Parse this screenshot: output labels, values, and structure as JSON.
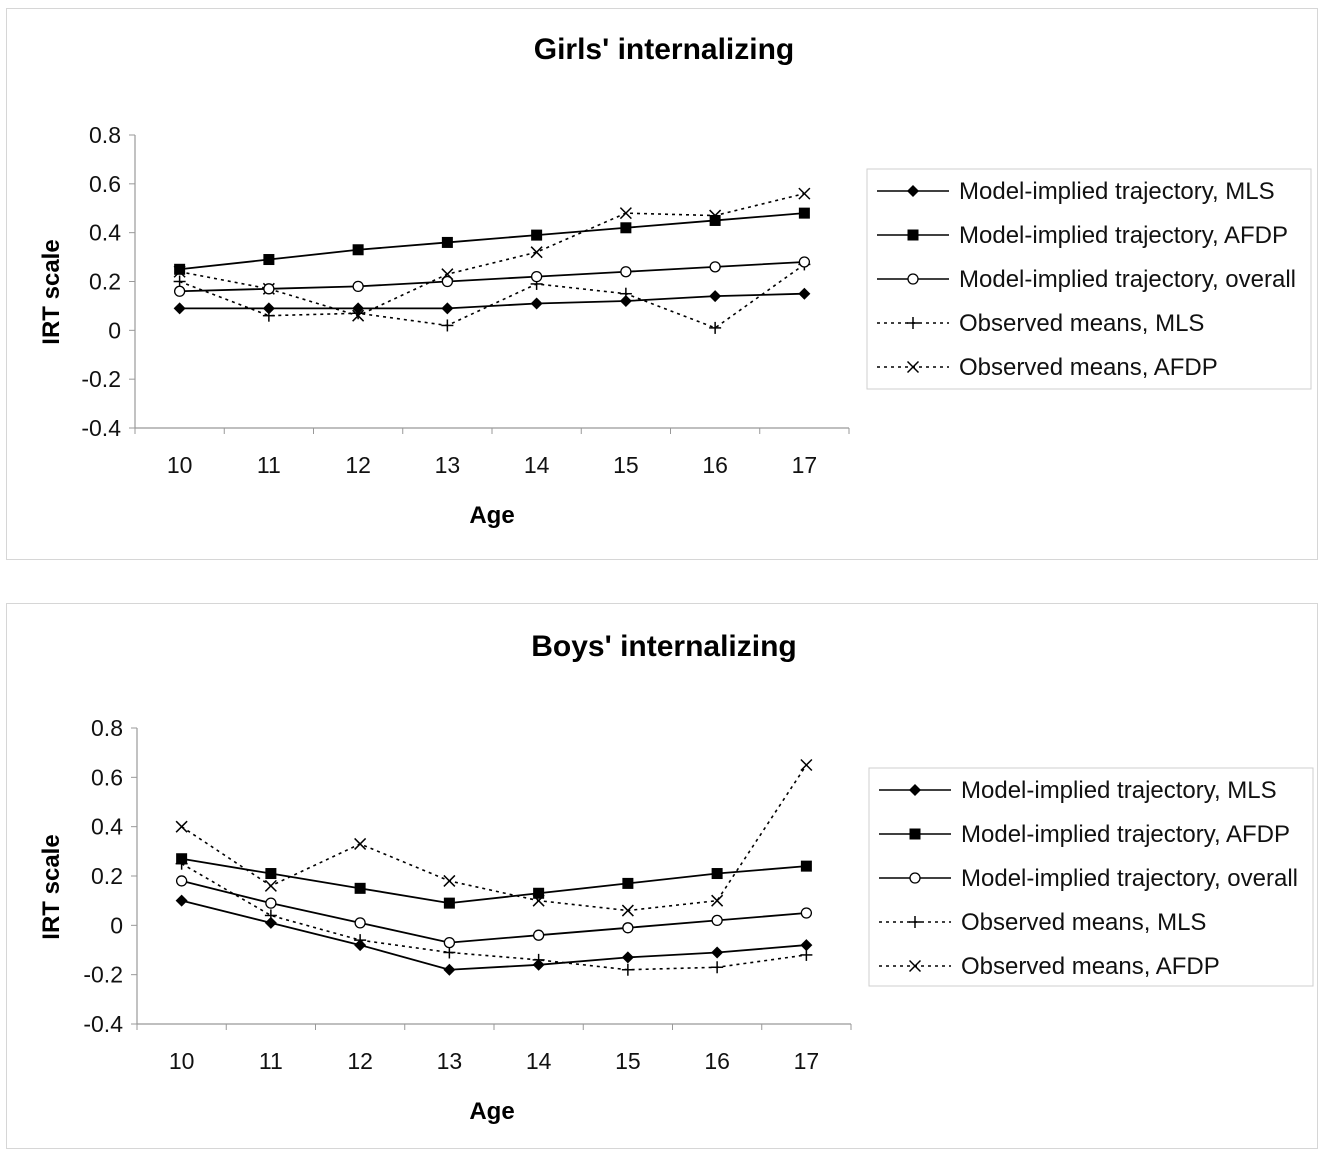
{
  "chart_data": [
    {
      "type": "line",
      "title": "Girls' internalizing",
      "xlabel": "Age",
      "ylabel": "IRT scale",
      "x": [
        10,
        11,
        12,
        13,
        14,
        15,
        16,
        17
      ],
      "ylim": [
        -0.4,
        0.8
      ],
      "yticks": [
        "0.8",
        "0.6",
        "0.4",
        "0.2",
        "0",
        "-0.2",
        "-0.4"
      ],
      "legend_position": "right",
      "grid": false,
      "series": [
        {
          "name": "Model-implied trajectory, MLS",
          "marker": "diamond",
          "style": "solid",
          "values": [
            0.09,
            0.09,
            0.09,
            0.09,
            0.11,
            0.12,
            0.14,
            0.15
          ]
        },
        {
          "name": "Model-implied trajectory, AFDP",
          "marker": "square",
          "style": "solid",
          "values": [
            0.25,
            0.29,
            0.33,
            0.36,
            0.39,
            0.42,
            0.45,
            0.48
          ]
        },
        {
          "name": "Model-implied trajectory, overall",
          "marker": "circle",
          "style": "solid",
          "values": [
            0.16,
            0.17,
            0.18,
            0.2,
            0.22,
            0.24,
            0.26,
            0.28
          ]
        },
        {
          "name": "Observed means, MLS",
          "marker": "plus",
          "style": "dotted",
          "values": [
            0.2,
            0.06,
            0.07,
            0.02,
            0.19,
            0.15,
            0.01,
            0.27
          ]
        },
        {
          "name": "Observed means, AFDP",
          "marker": "x",
          "style": "dotted",
          "values": [
            0.24,
            0.17,
            0.06,
            0.23,
            0.32,
            0.48,
            0.47,
            0.56
          ]
        }
      ]
    },
    {
      "type": "line",
      "title": "Boys' internalizing",
      "xlabel": "Age",
      "ylabel": "IRT scale",
      "x": [
        10,
        11,
        12,
        13,
        14,
        15,
        16,
        17
      ],
      "ylim": [
        -0.4,
        0.8
      ],
      "yticks": [
        "0.8",
        "0.6",
        "0.4",
        "0.2",
        "0",
        "-0.2",
        "-0.4"
      ],
      "legend_position": "right",
      "grid": false,
      "series": [
        {
          "name": "Model-implied trajectory, MLS",
          "marker": "diamond",
          "style": "solid",
          "values": [
            0.1,
            0.01,
            -0.08,
            -0.18,
            -0.16,
            -0.13,
            -0.11,
            -0.08
          ]
        },
        {
          "name": "Model-implied trajectory, AFDP",
          "marker": "square",
          "style": "solid",
          "values": [
            0.27,
            0.21,
            0.15,
            0.09,
            0.13,
            0.17,
            0.21,
            0.24
          ]
        },
        {
          "name": "Model-implied trajectory, overall",
          "marker": "circle",
          "style": "solid",
          "values": [
            0.18,
            0.09,
            0.01,
            -0.07,
            -0.04,
            -0.01,
            0.02,
            0.05
          ]
        },
        {
          "name": "Observed means, MLS",
          "marker": "plus",
          "style": "dotted",
          "values": [
            0.25,
            0.04,
            -0.06,
            -0.11,
            -0.14,
            -0.18,
            -0.17,
            -0.12
          ]
        },
        {
          "name": "Observed means, AFDP",
          "marker": "x",
          "style": "dotted",
          "values": [
            0.4,
            0.16,
            0.33,
            0.18,
            0.1,
            0.06,
            0.1,
            0.65
          ]
        }
      ]
    }
  ]
}
